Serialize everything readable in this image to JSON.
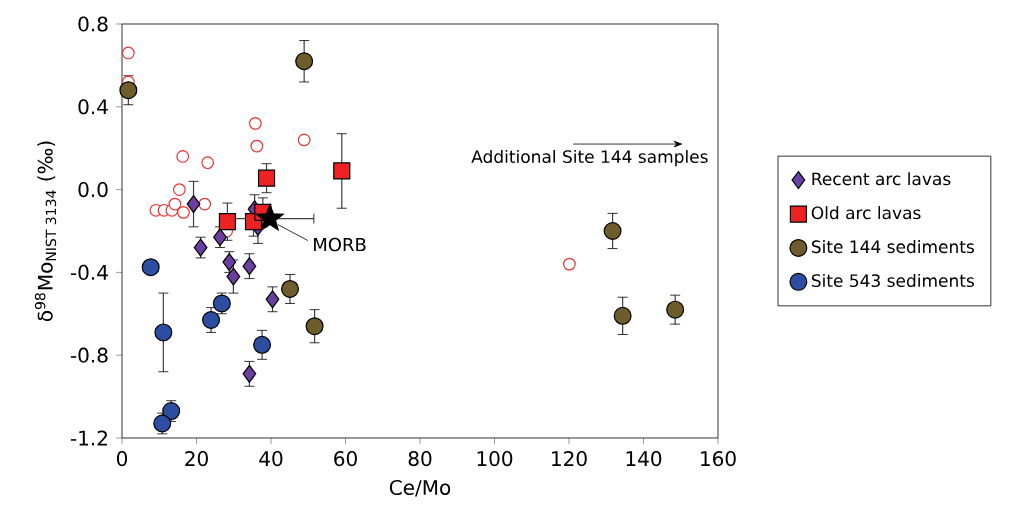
{
  "chart_data": {
    "type": "scatter",
    "xlabel": "Ce/Mo",
    "ylabel": "δ$^{98}$Mo$_{NIST 3134}$ (‰)",
    "xlim": [
      0,
      160
    ],
    "xticks": [
      0,
      20,
      40,
      60,
      80,
      100,
      120,
      140,
      160
    ],
    "ylim": [
      -1.2,
      0.8
    ],
    "yticks": [
      {
        "value": -1.2,
        "label": "-1.2"
      },
      {
        "value": -0.8,
        "label": "-0.8"
      },
      {
        "value": -0.4,
        "label": "-0.4"
      },
      {
        "value": 0,
        "label": "0.0"
      },
      {
        "value": 0.4,
        "label": "0.4"
      },
      {
        "value": 0.8,
        "label": "0.8"
      }
    ],
    "grid": false,
    "legend": "right",
    "annotations": [
      {
        "text": "MORB",
        "x": 39.7,
        "y": -0.14
      },
      "Additional Site 144 samples"
    ],
    "series": [
      {
        "color": "#ee3333",
        "marker": "circle",
        "x": [
          1.7,
          1.7,
          16.3,
          23,
          15.4,
          35.8,
          36.2,
          48.9,
          9.1,
          11.3,
          13.4,
          14.2,
          16.5,
          22.2,
          28.1,
          120.1
        ],
        "values": [
          0.66,
          0.52,
          0.16,
          0.13,
          0.0,
          0.32,
          0.21,
          0.24,
          -0.1,
          -0.1,
          -0.1,
          -0.07,
          -0.11,
          -0.07,
          -0.2,
          -0.36
        ]
      },
      {
        "name": "Recent arc lavas",
        "color": "#6b3fa0",
        "marker": "diamond",
        "x": [
          19.2,
          35.6,
          36.5,
          26.3,
          21.1,
          28.8,
          34.2,
          29.9,
          40.4,
          34.2
        ],
        "values": [
          -0.07,
          -0.095,
          -0.18,
          -0.23,
          -0.28,
          -0.35,
          -0.37,
          -0.42,
          -0.53,
          -0.89
        ],
        "errors": [
          0.11,
          0.07,
          0.08,
          0.05,
          0.05,
          0.05,
          0.06,
          0.08,
          0.06,
          0.06
        ]
      },
      {
        "name": "Old arc lavas",
        "color": "#ee2222",
        "marker": "square",
        "x": [
          38.8,
          59,
          28.3,
          35.3,
          37.8
        ],
        "values": [
          0.055,
          0.09,
          -0.155,
          -0.155,
          -0.11
        ],
        "errors": [
          0.07,
          0.18,
          0.09,
          0.07,
          0.07
        ]
      },
      {
        "name": "Site 144 sediments",
        "color": "#6e5d2a",
        "marker": "circle",
        "x": [
          1.7,
          48.9,
          45.1,
          51.7,
          131.7,
          134.4,
          148.5
        ],
        "values": [
          0.48,
          0.62,
          -0.48,
          -0.66,
          -0.2,
          -0.61,
          -0.58
        ],
        "errors": [
          0.07,
          0.1,
          0.07,
          0.08,
          0.085,
          0.09,
          0.07
        ]
      },
      {
        "name": "Site 543 sediments",
        "color": "#2d4da0",
        "marker": "circle",
        "x": [
          7.7,
          11.1,
          26.8,
          23.9,
          37.6,
          13.2,
          10.8
        ],
        "values": [
          -0.375,
          -0.69,
          -0.55,
          -0.63,
          -0.75,
          -1.07,
          -1.13
        ],
        "errors": [
          0.03,
          0.19,
          0.05,
          0.06,
          0.07,
          0.05,
          0.05
        ]
      },
      {
        "color": "#000000",
        "marker": "star",
        "x": [
          39.7
        ],
        "values": [
          -0.14
        ],
        "xerrors": [
          11.8
        ]
      }
    ]
  }
}
